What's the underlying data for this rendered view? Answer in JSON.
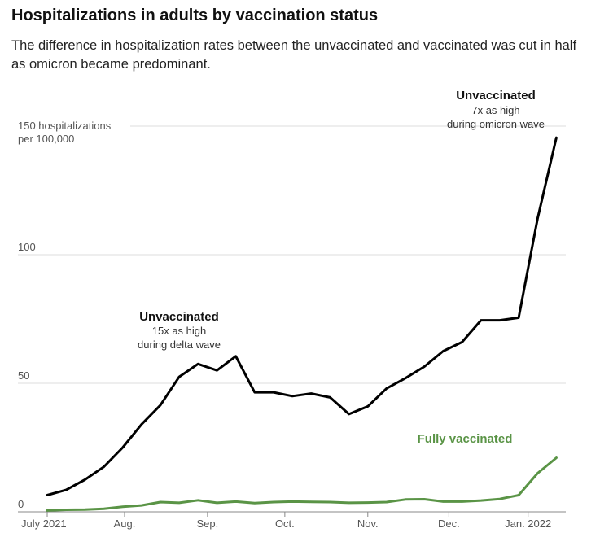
{
  "title": "Hospitalizations in adults by vaccination status",
  "subtitle": "The difference in hospitalization rates between the unvaccinated and vaccinated was cut in half as omicron became predominant.",
  "colors": {
    "unvaccinated": "#000000",
    "vaccinated": "#5a9446",
    "grid": "#dddddd"
  },
  "chart_data": {
    "type": "line",
    "title": "Hospitalizations in adults by vaccination status",
    "ylabel": "hospitalizations per 100,000",
    "ylim": [
      0,
      150
    ],
    "xlim": [
      0,
      27.5
    ],
    "y_ticks": [
      {
        "value": 0,
        "label": "0"
      },
      {
        "value": 50,
        "label": "50"
      },
      {
        "value": 100,
        "label": "100"
      },
      {
        "value": 150,
        "label": "150 hospitalizations",
        "label2": "per 100,000"
      }
    ],
    "x_ticks": [
      {
        "x": 0,
        "label": "July 2021"
      },
      {
        "x": 4.1,
        "label": "Aug."
      },
      {
        "x": 8.5,
        "label": "Sep."
      },
      {
        "x": 12.6,
        "label": "Oct."
      },
      {
        "x": 17.0,
        "label": "Nov."
      },
      {
        "x": 21.3,
        "label": "Dec."
      },
      {
        "x": 25.5,
        "label": "Jan. 2022"
      }
    ],
    "series": [
      {
        "name": "Unvaccinated",
        "color": "#000000",
        "x": [
          0,
          1,
          2,
          3,
          4,
          5,
          6,
          7,
          8,
          9,
          10,
          11,
          12,
          13,
          14,
          15,
          16,
          17,
          18,
          19,
          20,
          21,
          22,
          23,
          24,
          25,
          26,
          27
        ],
        "values": [
          6.5,
          8.5,
          12.5,
          17.5,
          25,
          34,
          41.5,
          52.5,
          57.5,
          55,
          60.5,
          46.5,
          46.5,
          45,
          46,
          44.5,
          38,
          41,
          48,
          52,
          56.5,
          62.5,
          66,
          74.5,
          74.5,
          75.5,
          114,
          145.5
        ]
      },
      {
        "name": "Fully vaccinated",
        "color": "#5a9446",
        "x": [
          0,
          1,
          2,
          3,
          4,
          5,
          6,
          7,
          8,
          9,
          10,
          11,
          12,
          13,
          14,
          15,
          16,
          17,
          18,
          19,
          20,
          21,
          22,
          23,
          24,
          25,
          26,
          27
        ],
        "values": [
          0.5,
          0.8,
          0.9,
          1.2,
          2,
          2.5,
          3.8,
          3.5,
          4.5,
          3.5,
          4,
          3.4,
          3.8,
          4,
          3.9,
          3.8,
          3.5,
          3.6,
          3.8,
          4.8,
          4.9,
          4,
          4,
          4.4,
          5,
          6.5,
          15,
          21
        ]
      }
    ],
    "annotations": [
      {
        "id": "delta",
        "head": "Unvaccinated",
        "line1": "15x as high",
        "line2": "during delta wave"
      },
      {
        "id": "omicron",
        "head": "Unvaccinated",
        "line1": "7x as high",
        "line2": "during omicron wave"
      },
      {
        "id": "vaccinated",
        "head": "Fully vaccinated"
      }
    ]
  }
}
